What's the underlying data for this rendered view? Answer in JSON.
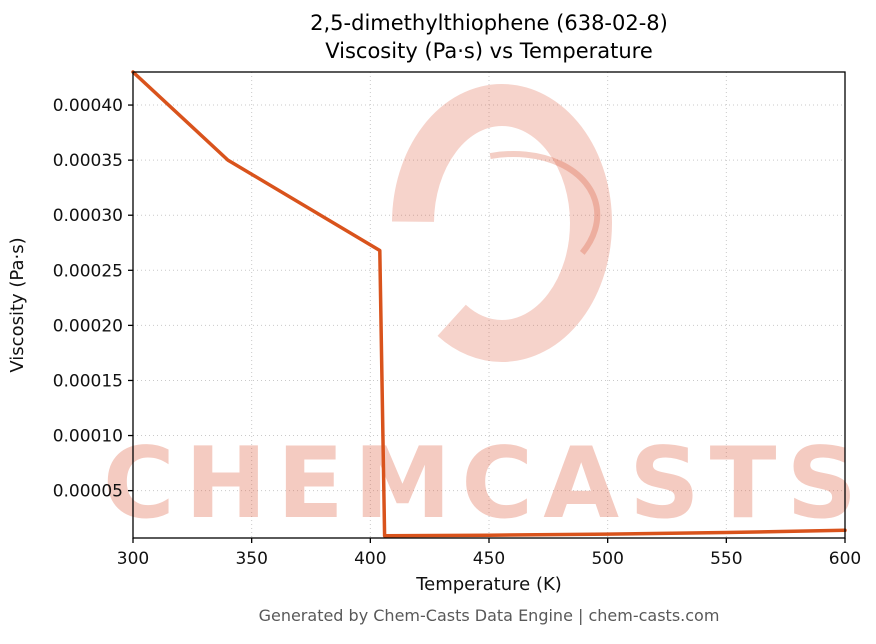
{
  "title": {
    "line1": "2,5-dimethylthiophene (638-02-8)",
    "line2": "Viscosity (Pa·s) vs Temperature"
  },
  "footer": "Generated by Chem-Casts Data Engine | chem-casts.com",
  "watermark": {
    "text": "CHEMCASTS",
    "color": "#dd5535"
  },
  "chart_data": {
    "type": "line",
    "title": "2,5-dimethylthiophene (638-02-8) — Viscosity (Pa·s) vs Temperature",
    "xlabel": "Temperature (K)",
    "ylabel": "Viscosity (Pa·s)",
    "xlim": [
      300,
      600
    ],
    "ylim": [
      7e-06,
      0.00043
    ],
    "xticks": [
      300,
      350,
      400,
      450,
      500,
      550,
      600
    ],
    "yticks": [
      5e-05,
      0.0001,
      0.00015,
      0.0002,
      0.00025,
      0.0003,
      0.00035,
      0.0004
    ],
    "ytick_labels": [
      "0.00005",
      "0.00010",
      "0.00015",
      "0.00020",
      "0.00025",
      "0.00030",
      "0.00035",
      "0.00040"
    ],
    "grid": true,
    "legend": "none",
    "line_color": "#d9531c",
    "line_width": 3.5,
    "series": [
      {
        "name": "viscosity",
        "points": [
          [
            300,
            0.00043
          ],
          [
            340,
            0.00035
          ],
          [
            404,
            0.000268
          ],
          [
            406,
            9e-06
          ],
          [
            450,
            9.5e-06
          ],
          [
            500,
            1.05e-05
          ],
          [
            550,
            1.2e-05
          ],
          [
            600,
            1.4e-05
          ]
        ]
      }
    ]
  }
}
